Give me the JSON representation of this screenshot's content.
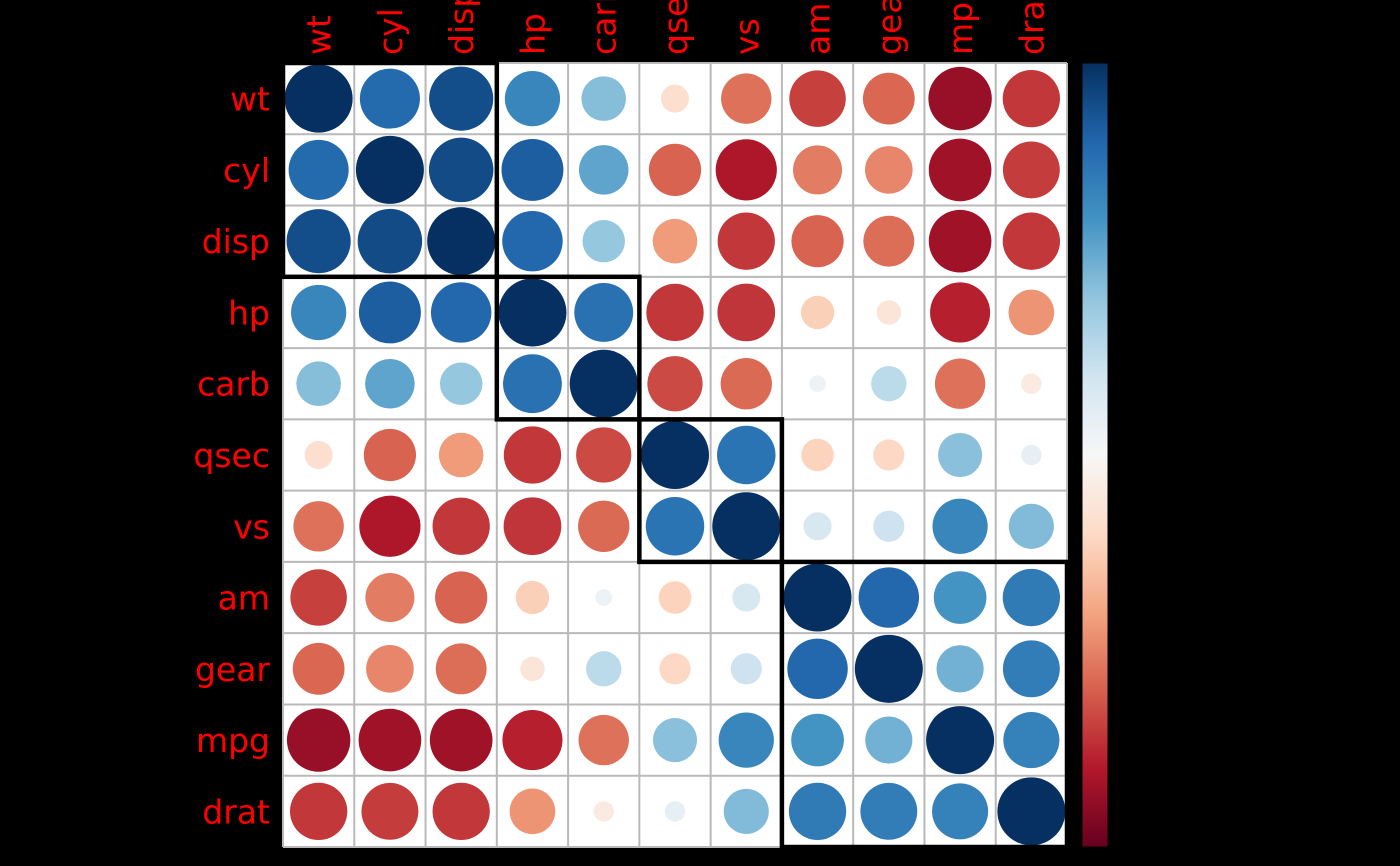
{
  "chart_data": {
    "type": "heatmap",
    "style": "correlation-bubble-matrix",
    "title": "",
    "categories": [
      "wt",
      "cyl",
      "disp",
      "hp",
      "carb",
      "qsec",
      "vs",
      "am",
      "gear",
      "mpg",
      "drat"
    ],
    "series": [
      {
        "name": "wt",
        "values": [
          1.0,
          0.78,
          0.89,
          0.66,
          0.43,
          -0.17,
          -0.55,
          -0.69,
          -0.58,
          -0.87,
          -0.71
        ]
      },
      {
        "name": "cyl",
        "values": [
          0.78,
          1.0,
          0.9,
          0.83,
          0.53,
          -0.59,
          -0.81,
          -0.52,
          -0.49,
          -0.85,
          -0.7
        ]
      },
      {
        "name": "disp",
        "values": [
          0.89,
          0.9,
          1.0,
          0.79,
          0.39,
          -0.43,
          -0.71,
          -0.59,
          -0.56,
          -0.85,
          -0.71
        ]
      },
      {
        "name": "hp",
        "values": [
          0.66,
          0.83,
          0.79,
          1.0,
          0.75,
          -0.71,
          -0.72,
          -0.24,
          -0.13,
          -0.78,
          -0.45
        ]
      },
      {
        "name": "carb",
        "values": [
          0.43,
          0.53,
          0.39,
          0.75,
          1.0,
          -0.66,
          -0.57,
          0.06,
          0.27,
          -0.55,
          -0.09
        ]
      },
      {
        "name": "qsec",
        "values": [
          -0.17,
          -0.59,
          -0.43,
          -0.71,
          -0.66,
          1.0,
          0.74,
          -0.23,
          -0.21,
          0.42,
          0.09
        ]
      },
      {
        "name": "vs",
        "values": [
          -0.55,
          -0.81,
          -0.71,
          -0.72,
          -0.57,
          0.74,
          1.0,
          0.17,
          0.21,
          0.66,
          0.44
        ]
      },
      {
        "name": "am",
        "values": [
          -0.69,
          -0.52,
          -0.59,
          -0.24,
          0.06,
          -0.23,
          0.17,
          1.0,
          0.79,
          0.6,
          0.71
        ]
      },
      {
        "name": "gear",
        "values": [
          -0.58,
          -0.49,
          -0.56,
          -0.13,
          0.27,
          -0.21,
          0.21,
          0.79,
          1.0,
          0.48,
          0.7
        ]
      },
      {
        "name": "mpg",
        "values": [
          -0.87,
          -0.85,
          -0.85,
          -0.78,
          -0.55,
          0.42,
          0.66,
          0.6,
          0.48,
          1.0,
          0.68
        ]
      },
      {
        "name": "drat",
        "values": [
          -0.71,
          -0.7,
          -0.71,
          -0.45,
          -0.09,
          0.09,
          0.44,
          0.71,
          0.7,
          0.68,
          1.0
        ]
      }
    ],
    "value_domain": [
      -1,
      1
    ],
    "cluster_rects": [
      {
        "start": 0,
        "end": 2
      },
      {
        "start": 3,
        "end": 4
      },
      {
        "start": 5,
        "end": 6
      },
      {
        "start": 7,
        "end": 10
      }
    ],
    "colorbar": {
      "position": "right",
      "top_value": 1,
      "bottom_value": -1
    },
    "colors": {
      "palette_pos_to_neg": [
        "#053061",
        "#2166AC",
        "#4393C3",
        "#92C5DE",
        "#D1E5F0",
        "#F7F7F7",
        "#FDDBC7",
        "#F4A582",
        "#D6604D",
        "#B2182B",
        "#67001F"
      ],
      "label_color": "#FF0000",
      "grid_color": "#B9B9B9",
      "cell_background": "#FFFFFF",
      "page_background": "#000000",
      "cluster_rect_color": "#000000"
    },
    "grid": true,
    "legend": "none"
  }
}
